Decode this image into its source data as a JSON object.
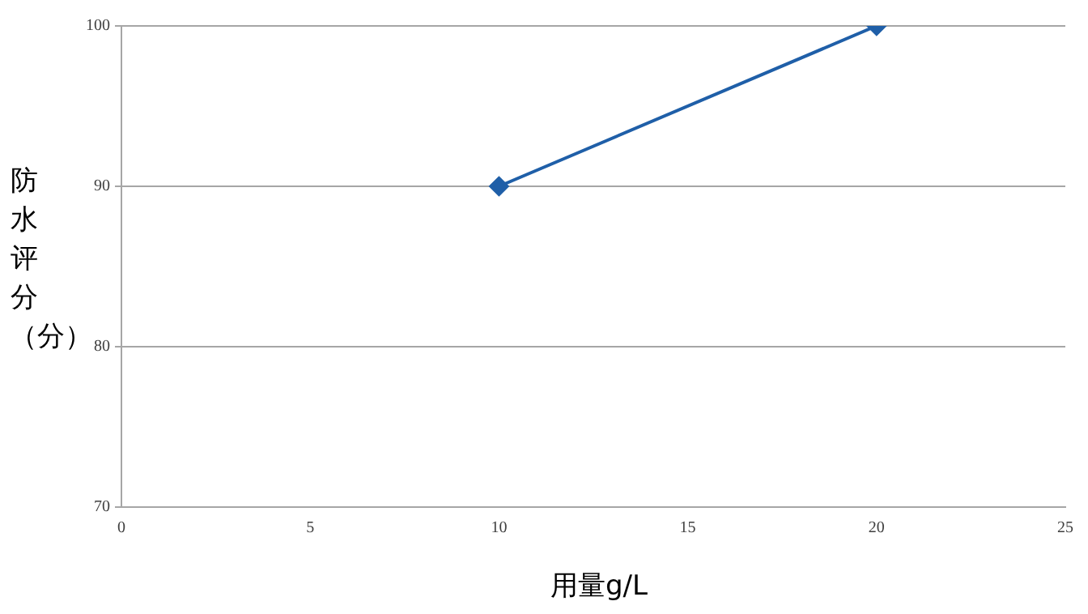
{
  "chart_data": {
    "type": "line",
    "xlabel": "用量g/L",
    "ylabel": "防水评分（分）",
    "x": [
      10,
      20
    ],
    "series": [
      {
        "color": "#1f5fa8",
        "values": [
          90,
          100
        ]
      }
    ],
    "xlim": [
      0,
      25
    ],
    "xticks": [
      0,
      5,
      10,
      15,
      20,
      25
    ],
    "ylim": [
      70,
      100
    ],
    "yticks": [
      70,
      80,
      90,
      100
    ],
    "grid": "y",
    "legend": false,
    "marker": "diamond",
    "line_style": "solid"
  }
}
